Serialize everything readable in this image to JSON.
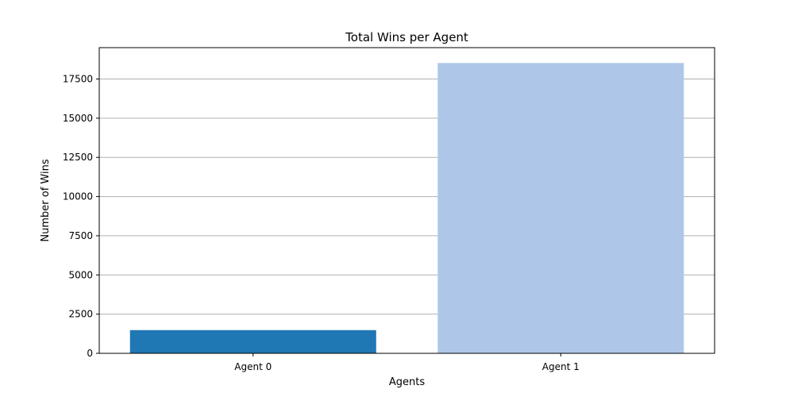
{
  "chart_data": {
    "type": "bar",
    "title": "Total Wins per Agent",
    "xlabel": "Agents",
    "ylabel": "Number of Wins",
    "categories": [
      "Agent 0",
      "Agent 1"
    ],
    "values": [
      1480,
      18520
    ],
    "colors": [
      "#1f77b4",
      "#aec7e8"
    ],
    "ylim": [
      0,
      19500
    ],
    "yticks": [
      0,
      2500,
      5000,
      7500,
      10000,
      12500,
      15000,
      17500
    ],
    "ytick_labels": [
      "0",
      "2500",
      "5000",
      "7500",
      "10000",
      "12500",
      "15000",
      "17500"
    ],
    "grid": "y-axis",
    "legend": "none"
  }
}
